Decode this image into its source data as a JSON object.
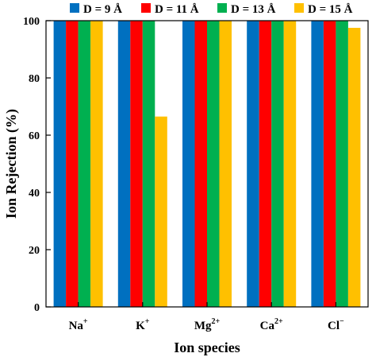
{
  "chart_data": {
    "type": "bar",
    "xlabel": "Ion species",
    "ylabel": "Ion Rejection (%)",
    "ylim": [
      0,
      100
    ],
    "yticks": [
      "0",
      "20",
      "40",
      "60",
      "80",
      "100"
    ],
    "grid": false,
    "legend_position": "top",
    "categories": [
      {
        "base": "Na",
        "sup": "+"
      },
      {
        "base": "K",
        "sup": "+"
      },
      {
        "base": "Mg",
        "sup": "2+"
      },
      {
        "base": "Ca",
        "sup": "2+"
      },
      {
        "base": "Cl",
        "sup": "−"
      }
    ],
    "series": [
      {
        "name": "D = 9 Å",
        "color": "#0070C0",
        "values": [
          100,
          100,
          100,
          100,
          100
        ]
      },
      {
        "name": "D = 11 Å",
        "color": "#FF0000",
        "values": [
          100,
          100,
          100,
          100,
          100
        ]
      },
      {
        "name": "D = 13 Å",
        "color": "#00B050",
        "values": [
          100,
          100,
          100,
          100,
          100
        ]
      },
      {
        "name": "D = 15 Å",
        "color": "#FFC000",
        "values": [
          100,
          66.5,
          100,
          100,
          97.5
        ]
      }
    ]
  }
}
